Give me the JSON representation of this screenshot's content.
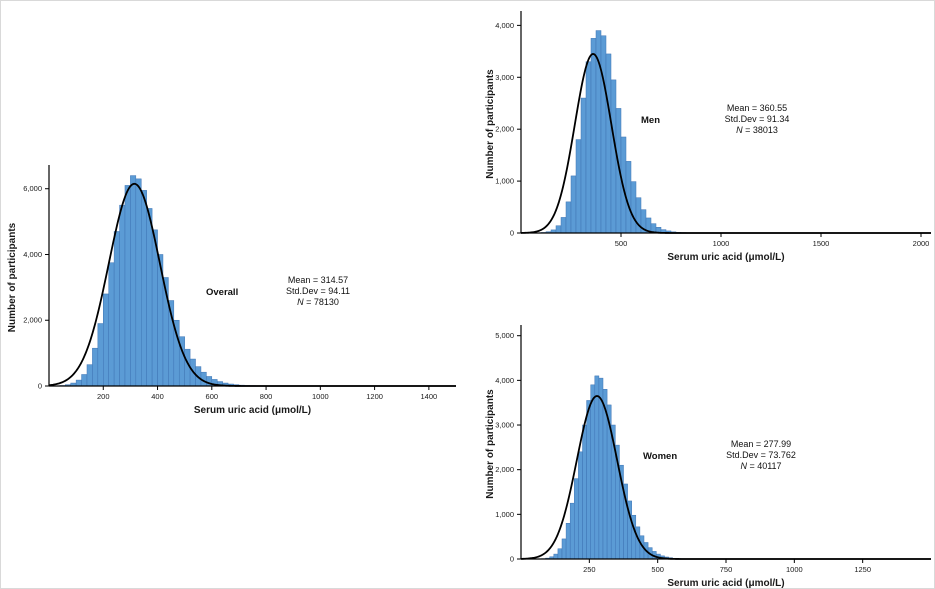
{
  "figure": {
    "background": "#ffffff",
    "bar_fill": "#5b9bd5",
    "bar_stroke": "#3e74b4",
    "curve_color": "#000000",
    "axis_color": "#000000",
    "text_color": "#1a1a1a"
  },
  "chart_data": [
    {
      "id": "overall",
      "type": "bar",
      "group_label": "Overall",
      "xlabel": "Serum uric acid (μmol/L)",
      "ylabel": "Number of participants",
      "stats": {
        "mean_label": "Mean = 314.57",
        "sd_label": "Std.Dev = 94.11",
        "n_italic": "N",
        "n_rest": " = 78130"
      },
      "n": 78130,
      "bin_start": 40,
      "bin_width": 20,
      "counts": [
        15,
        40,
        90,
        180,
        350,
        650,
        1150,
        1900,
        2800,
        3750,
        4700,
        5500,
        6100,
        6400,
        6300,
        5950,
        5400,
        4750,
        4000,
        3300,
        2600,
        2000,
        1500,
        1120,
        820,
        590,
        420,
        290,
        200,
        135,
        90,
        60,
        40,
        26,
        17,
        11,
        7,
        5
      ],
      "curve": {
        "mean": 314.57,
        "sd": 94.11,
        "peak": 6150
      },
      "x_ticks": [
        200,
        400,
        600,
        800,
        1000,
        1200,
        1400
      ],
      "x_max": 1500,
      "y_ticks": [
        0,
        2000,
        4000,
        6000
      ],
      "y_max": 6600,
      "grid": false,
      "legend": "none"
    },
    {
      "id": "men",
      "type": "bar",
      "group_label": "Men",
      "xlabel": "Serum uric acid (μmol/L)",
      "ylabel": "Number of participants",
      "stats": {
        "mean_label": "Mean = 360.55",
        "sd_label": "Std.Dev = 91.34",
        "n_italic": "N",
        "n_rest": " = 38013"
      },
      "n": 38013,
      "bin_start": 100,
      "bin_width": 25,
      "counts": [
        10,
        25,
        60,
        140,
        300,
        600,
        1100,
        1800,
        2600,
        3300,
        3750,
        3900,
        3800,
        3450,
        2950,
        2400,
        1850,
        1380,
        990,
        680,
        450,
        290,
        180,
        110,
        65,
        40,
        22,
        13,
        8
      ],
      "curve": {
        "mean": 360.55,
        "sd": 91.34,
        "peak": 3450
      },
      "x_ticks": [
        500,
        1000,
        1500,
        2000
      ],
      "x_max": 2050,
      "y_ticks": [
        0,
        1000,
        2000,
        3000,
        4000
      ],
      "y_max": 4200,
      "grid": false,
      "legend": "none"
    },
    {
      "id": "women",
      "type": "bar",
      "group_label": "Women",
      "xlabel": "Serum uric acid (μmol/L)",
      "ylabel": "Number of participants",
      "stats": {
        "mean_label": "Mean = 277.99",
        "sd_label": "Std.Dev = 73.762",
        "n_italic": "N",
        "n_rest": " = 40117"
      },
      "n": 40117,
      "bin_start": 75,
      "bin_width": 15,
      "counts": [
        8,
        20,
        50,
        110,
        230,
        450,
        800,
        1250,
        1800,
        2400,
        3000,
        3550,
        3900,
        4100,
        4050,
        3800,
        3450,
        3000,
        2550,
        2100,
        1680,
        1300,
        980,
        720,
        520,
        370,
        255,
        170,
        110,
        70,
        45,
        28,
        17,
        10,
        6
      ],
      "curve": {
        "mean": 277.99,
        "sd": 73.762,
        "peak": 3650
      },
      "x_ticks": [
        250,
        500,
        750,
        1000,
        1250
      ],
      "x_max": 1500,
      "y_ticks": [
        0,
        1000,
        2000,
        3000,
        4000,
        5000
      ],
      "y_max": 5150,
      "grid": false,
      "legend": "none"
    }
  ]
}
